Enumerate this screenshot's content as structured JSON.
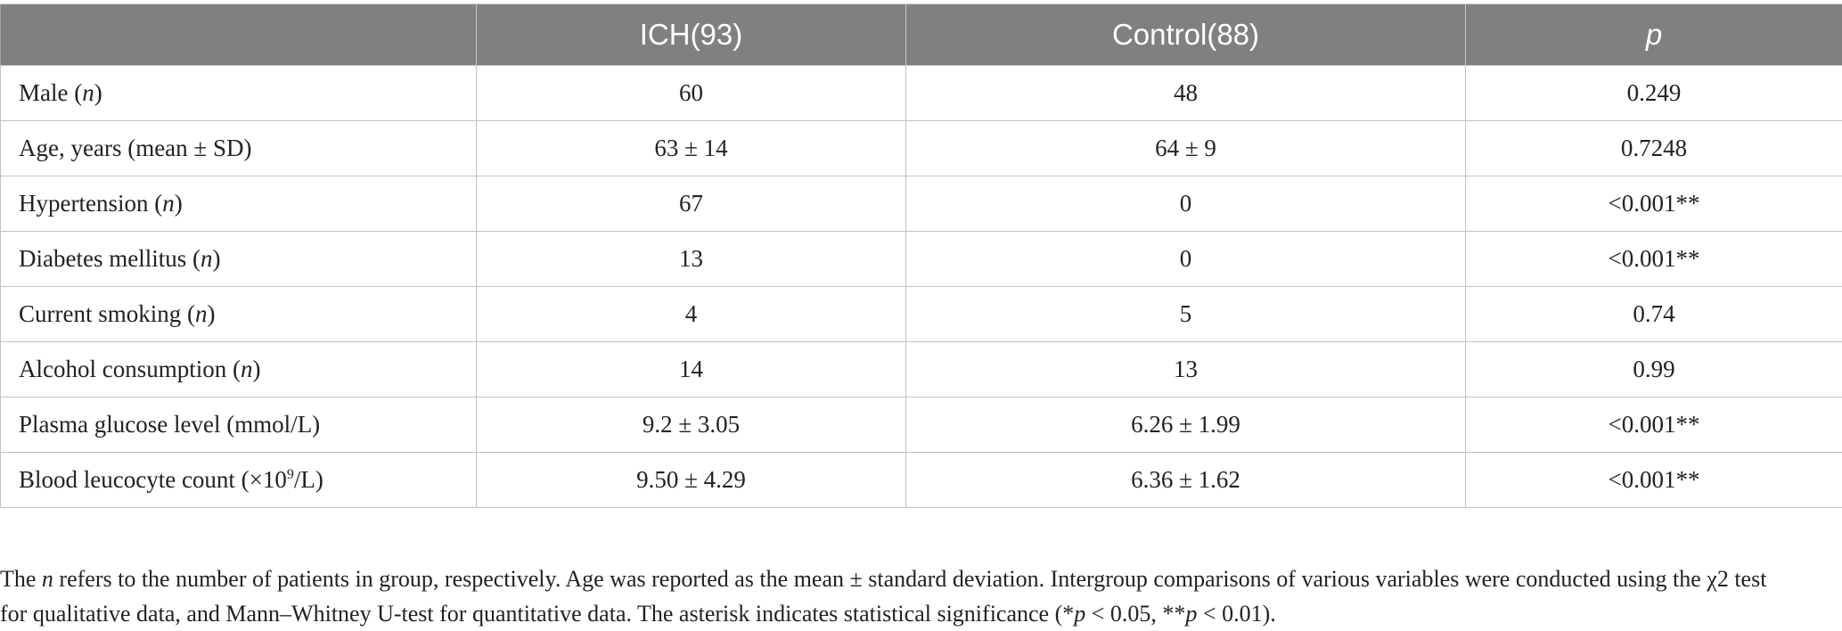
{
  "table": {
    "headers": [
      "",
      "ICH(93)",
      "Control(88)",
      "p"
    ],
    "rows": [
      {
        "label": "Male (",
        "label_italic": "n",
        "label_end": ")",
        "ich": "60",
        "control": "48",
        "p": "0.249"
      },
      {
        "label": "Age, years (mean ± SD)",
        "label_italic": "",
        "label_end": "",
        "ich": "63 ± 14",
        "control": "64 ± 9",
        "p": "0.7248"
      },
      {
        "label": "Hypertension (",
        "label_italic": "n",
        "label_end": ")",
        "ich": "67",
        "control": "0",
        "p": "<0.001**"
      },
      {
        "label": "Diabetes mellitus (",
        "label_italic": "n",
        "label_end": ")",
        "ich": "13",
        "control": "0",
        "p": "<0.001**"
      },
      {
        "label": "Current smoking (",
        "label_italic": "n",
        "label_end": ")",
        "ich": "4",
        "control": "5",
        "p": "0.74"
      },
      {
        "label": "Alcohol consumption (",
        "label_italic": "n",
        "label_end": ")",
        "ich": "14",
        "control": "13",
        "p": "0.99"
      },
      {
        "label": "Plasma glucose level (mmol/L)",
        "label_italic": "",
        "label_end": "",
        "ich": "9.2 ± 3.05",
        "control": "6.26 ± 1.99",
        "p": "<0.001**"
      },
      {
        "label": "Blood leucocyte count (×10",
        "label_sup": "9",
        "label_end": "/L)",
        "ich": "9.50 ± 4.29",
        "control": "6.36 ± 1.62",
        "p": "<0.001**"
      }
    ]
  },
  "footnote": {
    "line1_a": "The ",
    "line1_n": "n",
    "line1_b": " refers to the number of patients in group, respectively. Age was reported as the mean ± standard deviation. Intergroup comparisons of various variables were conducted using the χ2 test",
    "line2_a": "for qualitative data, and Mann–Whitney U-test for quantitative data. The asterisk indicates statistical significance (*",
    "line2_p1": "p",
    "line2_b": " < 0.05, **",
    "line2_p2": "p",
    "line2_c": " < 0.01)."
  }
}
